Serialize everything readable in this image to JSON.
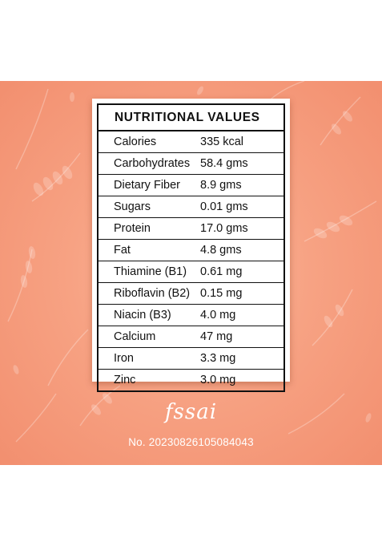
{
  "table": {
    "title": "NUTRITIONAL VALUES",
    "rows": [
      {
        "name": "Calories",
        "value": "335 kcal"
      },
      {
        "name": "Carbohydrates",
        "value": "58.4 gms"
      },
      {
        "name": "Dietary Fiber",
        "value": "8.9 gms"
      },
      {
        "name": "Sugars",
        "value": "0.01 gms"
      },
      {
        "name": "Protein",
        "value": "17.0 gms"
      },
      {
        "name": "Fat",
        "value": "4.8 gms"
      },
      {
        "name": "Thiamine (B1)",
        "value": "0.61 mg"
      },
      {
        "name": "Riboflavin (B2)",
        "value": "0.15 mg"
      },
      {
        "name": "Niacin (B3)",
        "value": "4.0 mg"
      },
      {
        "name": "Calcium",
        "value": "47 mg"
      },
      {
        "name": "Iron",
        "value": "3.3 mg"
      },
      {
        "name": "Zinc",
        "value": "3.0 mg"
      }
    ]
  },
  "logo": {
    "text": "fssai"
  },
  "license": {
    "text": "No. 20230826105084043"
  },
  "colors": {
    "panel": "#f7a283",
    "text": "#111111",
    "overlay": "#ffffff"
  }
}
